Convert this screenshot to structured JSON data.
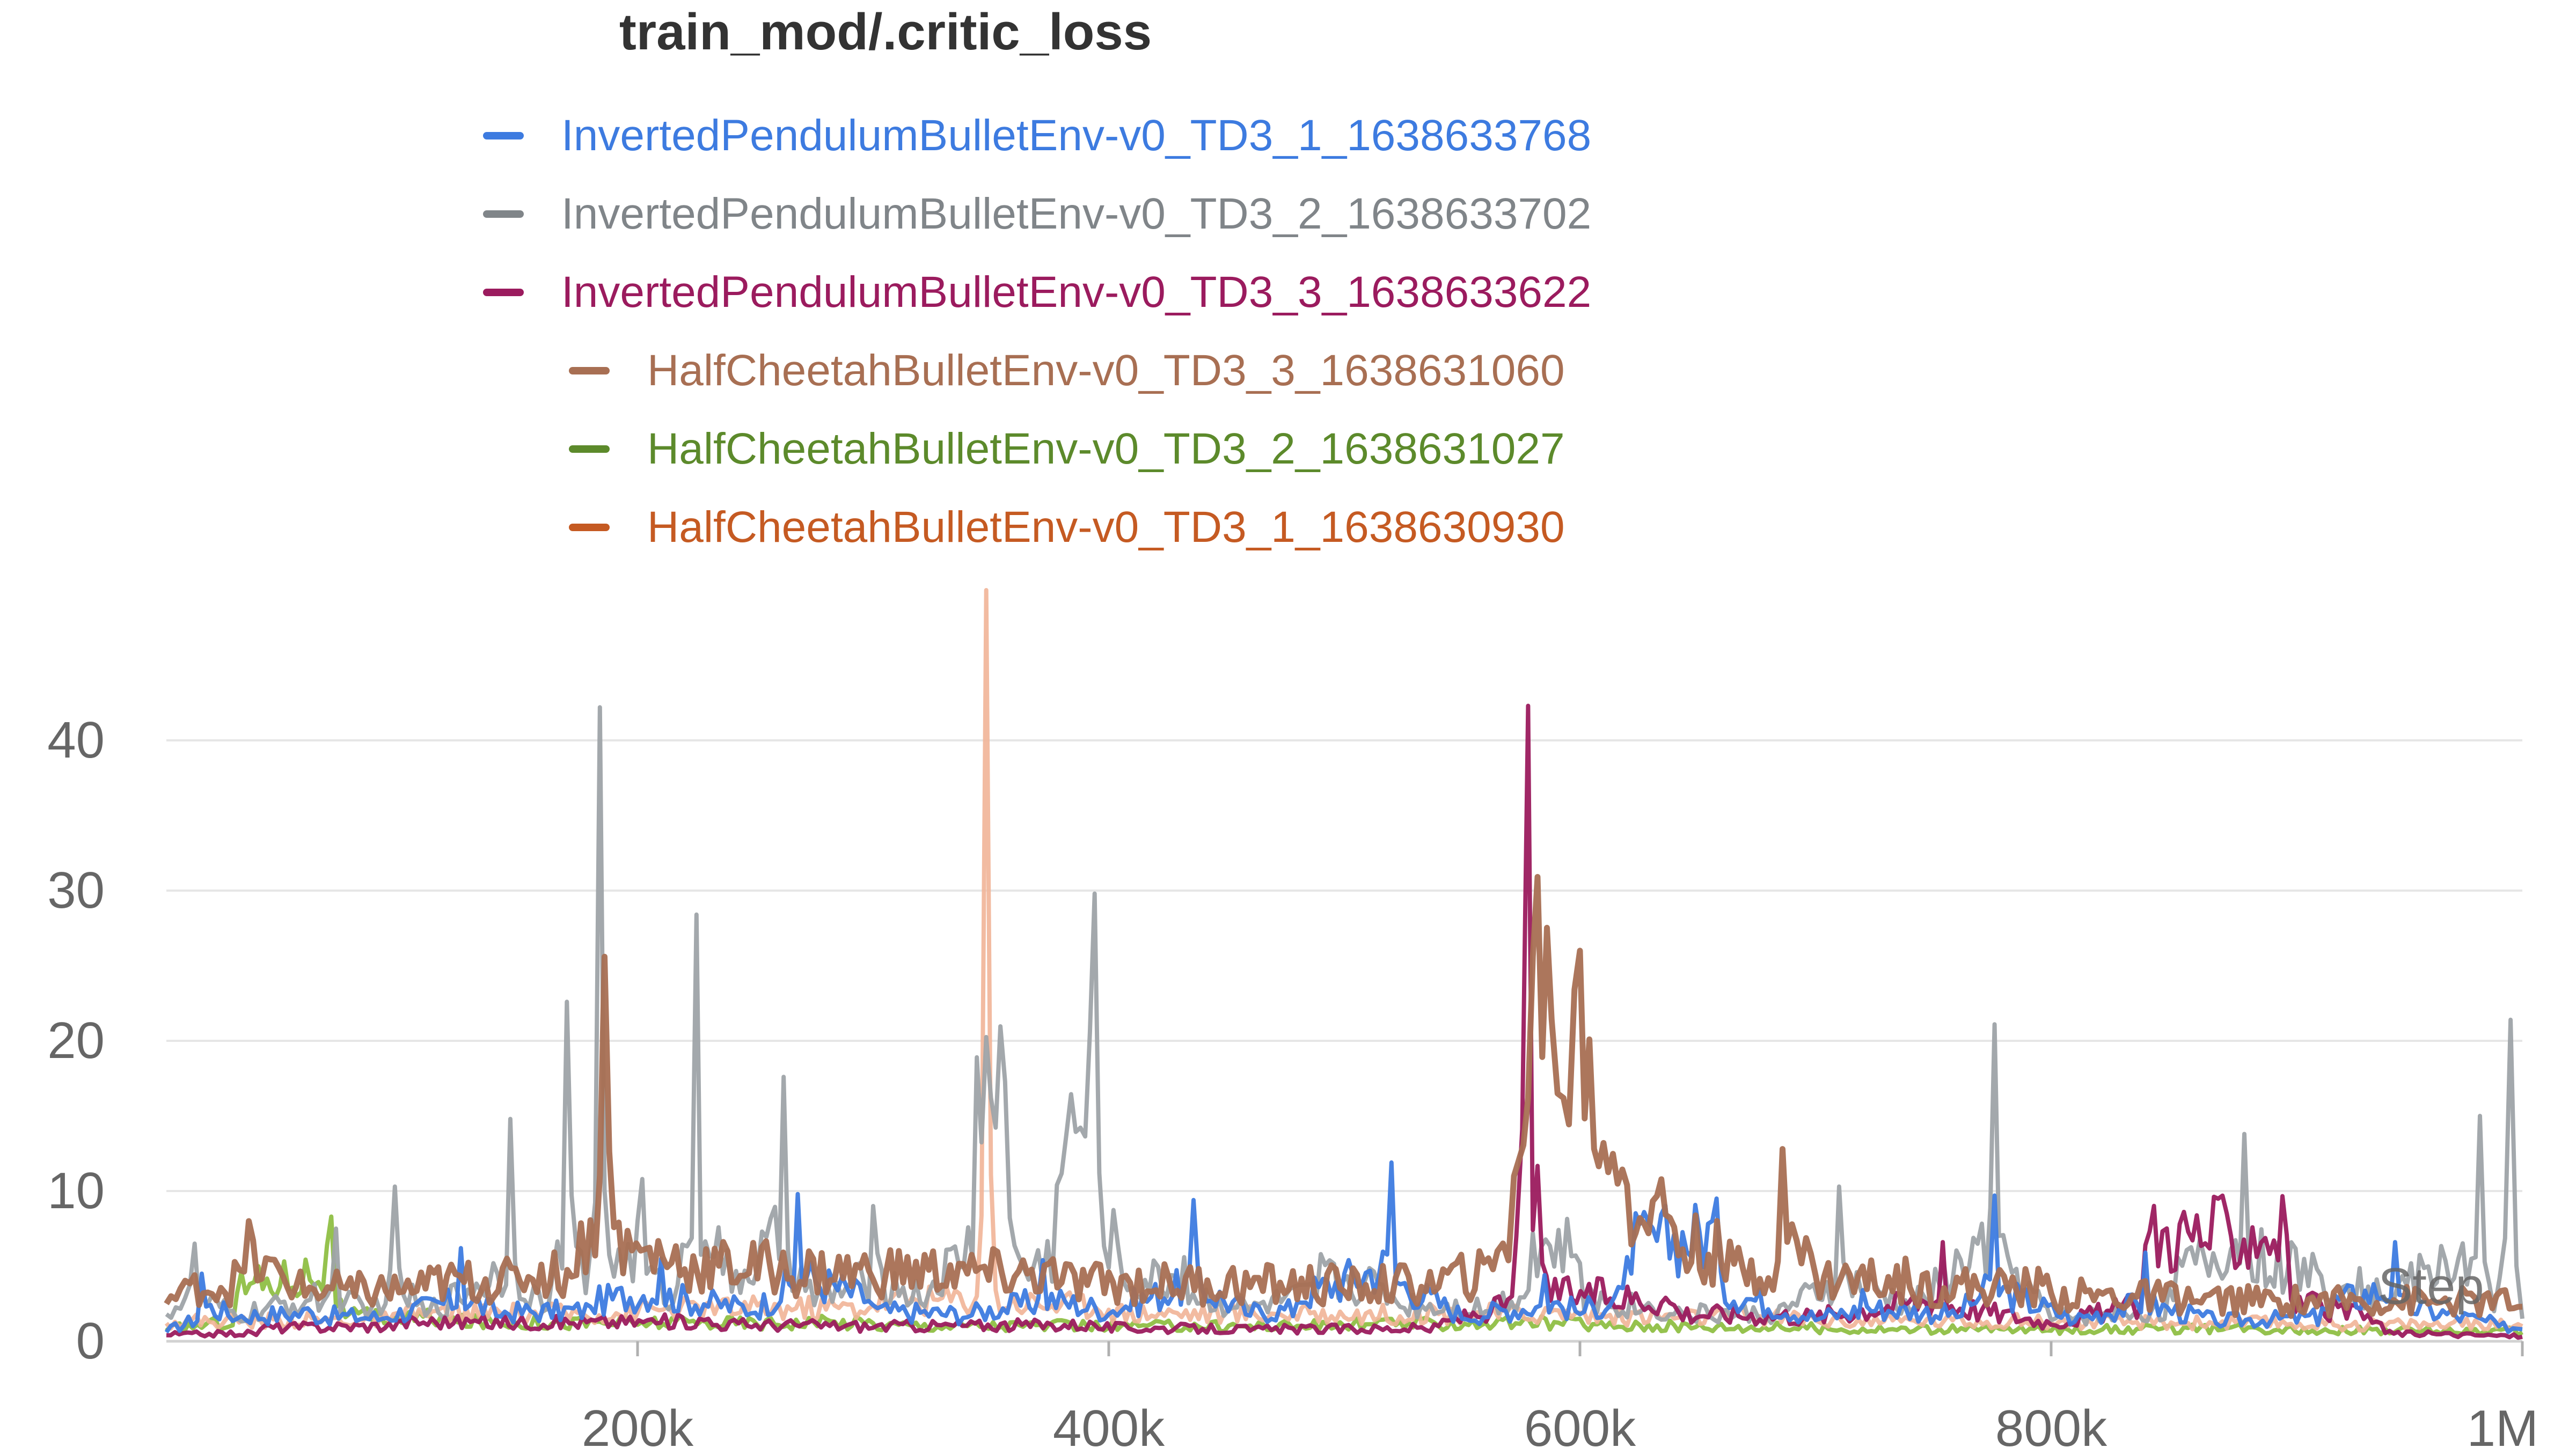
{
  "chart_data": {
    "type": "line",
    "title": "train_mod/.critic_loss",
    "xlabel": "Step",
    "ylabel": "",
    "xlim": [
      0,
      1000000
    ],
    "ylim": [
      0,
      50
    ],
    "grid": true,
    "legend_position": "top",
    "x_ticks": [
      {
        "value": 200000,
        "label": "200k"
      },
      {
        "value": 400000,
        "label": "400k"
      },
      {
        "value": 600000,
        "label": "600k"
      },
      {
        "value": 800000,
        "label": "800k"
      },
      {
        "value": 1000000,
        "label": "1M"
      }
    ],
    "y_ticks": [
      {
        "value": 0,
        "label": "0"
      },
      {
        "value": 10,
        "label": "10"
      },
      {
        "value": 20,
        "label": "20"
      },
      {
        "value": 30,
        "label": "30"
      },
      {
        "value": 40,
        "label": "40"
      }
    ],
    "series": [
      {
        "name": "InvertedPendulumBulletEnv-v0_TD3_1_1638633768",
        "color": "#3d7be0",
        "points": [
          [
            0,
            0.6
          ],
          [
            15000,
            4.5
          ],
          [
            30000,
            1.5
          ],
          [
            60000,
            2.2
          ],
          [
            90000,
            1.4
          ],
          [
            125000,
            6.2
          ],
          [
            140000,
            1.7
          ],
          [
            180000,
            2.3
          ],
          [
            210000,
            5.5
          ],
          [
            250000,
            1.9
          ],
          [
            268000,
            9.8
          ],
          [
            300000,
            2.4
          ],
          [
            340000,
            1.6
          ],
          [
            372000,
            5.4
          ],
          [
            400000,
            1.8
          ],
          [
            436000,
            9.4
          ],
          [
            460000,
            1.7
          ],
          [
            480000,
            2.6
          ],
          [
            520000,
            11.9
          ],
          [
            550000,
            1.5
          ],
          [
            585000,
            4.4
          ],
          [
            600000,
            1.8
          ],
          [
            620000,
            5.6
          ],
          [
            658000,
            9.5
          ],
          [
            700000,
            1.4
          ],
          [
            720000,
            3.4
          ],
          [
            760000,
            1.6
          ],
          [
            776000,
            9.7
          ],
          [
            810000,
            1.3
          ],
          [
            840000,
            5.9
          ],
          [
            870000,
            1.2
          ],
          [
            915000,
            2.2
          ],
          [
            946000,
            6.6
          ],
          [
            990000,
            1.0
          ],
          [
            1000000,
            0.8
          ]
        ]
      },
      {
        "name": "InvertedPendulumBulletEnv-v0_TD3_2_1638633702",
        "color": "#9ea3a8",
        "points": [
          [
            0,
            1.8
          ],
          [
            12000,
            6.5
          ],
          [
            30000,
            1.5
          ],
          [
            72000,
            7.5
          ],
          [
            85000,
            1.6
          ],
          [
            97000,
            10.3
          ],
          [
            110000,
            1.7
          ],
          [
            146000,
            14.8
          ],
          [
            160000,
            2.0
          ],
          [
            170000,
            22.6
          ],
          [
            178000,
            3.2
          ],
          [
            184000,
            42.2
          ],
          [
            190000,
            4.3
          ],
          [
            202000,
            10.8
          ],
          [
            215000,
            2.5
          ],
          [
            225000,
            28.4
          ],
          [
            240000,
            3.3
          ],
          [
            262000,
            17.6
          ],
          [
            275000,
            2.4
          ],
          [
            300000,
            9.0
          ],
          [
            320000,
            2.6
          ],
          [
            344000,
            18.9
          ],
          [
            350000,
            16.2
          ],
          [
            356000,
            17.3
          ],
          [
            366000,
            4.1
          ],
          [
            378000,
            10.4
          ],
          [
            394000,
            29.8
          ],
          [
            408000,
            3.4
          ],
          [
            432000,
            5.6
          ],
          [
            460000,
            2.0
          ],
          [
            490000,
            5.8
          ],
          [
            520000,
            3.2
          ],
          [
            560000,
            2.0
          ],
          [
            580000,
            7.2
          ],
          [
            600000,
            5.2
          ],
          [
            640000,
            1.8
          ],
          [
            683000,
            1.6
          ],
          [
            710000,
            10.3
          ],
          [
            740000,
            2.0
          ],
          [
            776000,
            21.1
          ],
          [
            800000,
            1.4
          ],
          [
            850000,
            3.6
          ],
          [
            882000,
            13.8
          ],
          [
            940000,
            2.8
          ],
          [
            982000,
            15.0
          ],
          [
            988000,
            2.0
          ],
          [
            995000,
            21.4
          ],
          [
            1000000,
            1.5
          ]
        ]
      },
      {
        "name": "InvertedPendulumBulletEnv-v0_TD3_3_1638633622",
        "color": "#9b1b5e",
        "points": [
          [
            0,
            0.4
          ],
          [
            40000,
            0.8
          ],
          [
            100000,
            1.4
          ],
          [
            160000,
            1.1
          ],
          [
            230000,
            1.5
          ],
          [
            300000,
            0.9
          ],
          [
            392000,
            1.3
          ],
          [
            460000,
            0.7
          ],
          [
            540000,
            1.0
          ],
          [
            573000,
            7.0
          ],
          [
            578000,
            42.3
          ],
          [
            584000,
            5.2
          ],
          [
            640000,
            2.4
          ],
          [
            700000,
            1.5
          ],
          [
            754000,
            6.6
          ],
          [
            800000,
            1.1
          ],
          [
            840000,
            6.4
          ],
          [
            900000,
            7.1
          ],
          [
            940000,
            1.2
          ],
          [
            1000000,
            0.3
          ]
        ]
      },
      {
        "name": "HalfCheetahBulletEnv-v0_TD3_3_1638631060",
        "color": "#a86f53",
        "points": [
          [
            0,
            2.5
          ],
          [
            12000,
            4.4
          ],
          [
            25000,
            3.2
          ],
          [
            35000,
            8.0
          ],
          [
            55000,
            3.6
          ],
          [
            80000,
            3.0
          ],
          [
            110000,
            3.5
          ],
          [
            150000,
            4.0
          ],
          [
            172000,
            4.3
          ],
          [
            186000,
            25.6
          ],
          [
            192000,
            7.9
          ],
          [
            220000,
            4.8
          ],
          [
            260000,
            4.4
          ],
          [
            300000,
            4.1
          ],
          [
            340000,
            4.5
          ],
          [
            380000,
            3.9
          ],
          [
            420000,
            3.4
          ],
          [
            460000,
            3.6
          ],
          [
            500000,
            3.3
          ],
          [
            540000,
            3.6
          ],
          [
            565000,
            6.0
          ],
          [
            572000,
            11.0
          ],
          [
            580000,
            25.6
          ],
          [
            588000,
            21.4
          ],
          [
            593000,
            16.2
          ],
          [
            600000,
            26.0
          ],
          [
            610000,
            13.2
          ],
          [
            620000,
            10.4
          ],
          [
            640000,
            7.6
          ],
          [
            660000,
            5.2
          ],
          [
            680000,
            4.2
          ],
          [
            686000,
            12.8
          ],
          [
            700000,
            4.4
          ],
          [
            740000,
            3.6
          ],
          [
            800000,
            3.2
          ],
          [
            860000,
            2.6
          ],
          [
            900000,
            2.4
          ],
          [
            960000,
            2.5
          ],
          [
            1000000,
            2.3
          ]
        ]
      },
      {
        "name": "HalfCheetahBulletEnv-v0_TD3_2_1638631027",
        "color": "#8fbf45",
        "points": [
          [
            0,
            0.7
          ],
          [
            30000,
            3.2
          ],
          [
            70000,
            8.3
          ],
          [
            76000,
            1.6
          ],
          [
            120000,
            1.4
          ],
          [
            200000,
            1.1
          ],
          [
            300000,
            1.2
          ],
          [
            400000,
            0.9
          ],
          [
            500000,
            1.0
          ],
          [
            600000,
            1.5
          ],
          [
            700000,
            0.8
          ],
          [
            800000,
            0.7
          ],
          [
            900000,
            0.9
          ],
          [
            1000000,
            0.6
          ]
        ]
      },
      {
        "name": "HalfCheetahBulletEnv-v0_TD3_1_1638630930",
        "color": "#f1b497",
        "points": [
          [
            0,
            1.2
          ],
          [
            100000,
            1.6
          ],
          [
            200000,
            1.9
          ],
          [
            300000,
            2.4
          ],
          [
            344000,
            3.0
          ],
          [
            348000,
            50.0
          ],
          [
            352000,
            3.4
          ],
          [
            400000,
            2.1
          ],
          [
            500000,
            1.6
          ],
          [
            600000,
            1.9
          ],
          [
            700000,
            1.4
          ],
          [
            800000,
            1.2
          ],
          [
            900000,
            1.1
          ],
          [
            1000000,
            1.0
          ]
        ]
      }
    ]
  },
  "legend": [
    {
      "name": "InvertedPendulumBulletEnv-v0_TD3_1_1638633768",
      "swatch": "#3d7be0",
      "text_color": "#3d7be0"
    },
    {
      "name": "InvertedPendulumBulletEnv-v0_TD3_2_1638633702",
      "swatch": "#808589",
      "text_color": "#808589"
    },
    {
      "name": "InvertedPendulumBulletEnv-v0_TD3_3_1638633622",
      "swatch": "#9b1b5e",
      "text_color": "#9b1b5e"
    },
    {
      "name": "HalfCheetahBulletEnv-v0_TD3_3_1638631060",
      "swatch": "#a86f53",
      "text_color": "#a86f53"
    },
    {
      "name": "HalfCheetahBulletEnv-v0_TD3_2_1638631027",
      "swatch": "#5c8a2b",
      "text_color": "#5c8a2b"
    },
    {
      "name": "HalfCheetahBulletEnv-v0_TD3_1_1638630930",
      "swatch": "#c55a22",
      "text_color": "#c55a22"
    }
  ]
}
